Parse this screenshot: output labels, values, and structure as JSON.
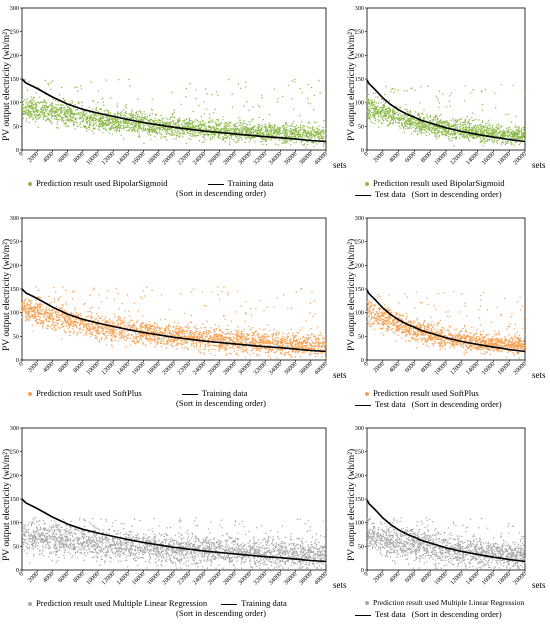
{
  "unit_y": "PV output electricity (wh/m²)",
  "x_unit_label": "sets",
  "chart_data": [
    {
      "type": "scatter",
      "activation": "BipolarSigmoid",
      "point_color": "#8db94a",
      "subset": "training",
      "ylabel": "PV output electricity (wh/m²)",
      "xlabel": "sets",
      "xlim": [
        0,
        40000
      ],
      "ylim": [
        0,
        300
      ],
      "xticks": [
        "0",
        "2000",
        "4000",
        "6000",
        "8000",
        "10000",
        "12000",
        "14000",
        "16000",
        "18000",
        "20000",
        "22000",
        "24000",
        "26000",
        "28000",
        "30000",
        "32000",
        "34000",
        "36000",
        "38000",
        "40000"
      ],
      "yticks": [
        "0",
        "50",
        "100",
        "150",
        "200",
        "250",
        "300"
      ],
      "series": [
        {
          "name": "Prediction result used BipolarSigmoid",
          "kind": "points",
          "center": [
            [
              0,
              88
            ],
            [
              4000,
              82
            ],
            [
              10000,
              62
            ],
            [
              20000,
              48
            ],
            [
              30000,
              38
            ],
            [
              40000,
              32
            ]
          ],
          "spread": [
            [
              0,
              22
            ],
            [
              10000,
              22
            ],
            [
              40000,
              18
            ]
          ],
          "ymax": 150
        },
        {
          "name": "Training data",
          "kind": "line",
          "x": [
            0,
            500,
            2000,
            4000,
            6000,
            8000,
            10000,
            12000,
            14000,
            16000,
            18000,
            20000,
            22000,
            24000,
            26000,
            28000,
            30000,
            32000,
            34000,
            36000,
            38000,
            40000
          ],
          "y": [
            150,
            142,
            130,
            112,
            97,
            86,
            78,
            71,
            64,
            58,
            53,
            48,
            44,
            40,
            37,
            34,
            31,
            28,
            26,
            23,
            20,
            18
          ]
        }
      ],
      "legend": {
        "points": "Prediction result used BipolarSigmoid",
        "line": "Training data",
        "note": "(Sort in descending order)"
      }
    },
    {
      "type": "scatter",
      "activation": "BipolarSigmoid",
      "point_color": "#8db94a",
      "subset": "test",
      "ylabel": "PV output electricity (wh/m²)",
      "xlabel": "sets",
      "xlim": [
        0,
        20000
      ],
      "ylim": [
        0,
        300
      ],
      "xticks": [
        "0",
        "2000",
        "4000",
        "6000",
        "8000",
        "10000",
        "12000",
        "14000",
        "16000",
        "18000",
        "20000"
      ],
      "yticks": [
        "0",
        "50",
        "100",
        "150",
        "200",
        "250",
        "300"
      ],
      "series": [
        {
          "name": "Prediction result used BipolarSigmoid",
          "kind": "points",
          "center": [
            [
              0,
              88
            ],
            [
              2000,
              80
            ],
            [
              5000,
              62
            ],
            [
              10000,
              45
            ],
            [
              15000,
              36
            ],
            [
              20000,
              30
            ]
          ],
          "spread": [
            [
              0,
              22
            ],
            [
              10000,
              20
            ],
            [
              20000,
              16
            ]
          ],
          "ymax": 140
        },
        {
          "name": "Test data",
          "kind": "line",
          "x": [
            0,
            250,
            1000,
            2000,
            3000,
            4000,
            5000,
            6000,
            7000,
            8000,
            9000,
            10000,
            11000,
            12000,
            13000,
            14000,
            15000,
            16000,
            17000,
            18000,
            19000,
            20000
          ],
          "y": [
            148,
            140,
            128,
            110,
            96,
            85,
            76,
            69,
            62,
            57,
            52,
            47,
            43,
            39,
            36,
            33,
            30,
            27,
            25,
            22,
            20,
            18
          ]
        }
      ],
      "legend": {
        "points": "Prediction result used BipolarSigmoid",
        "line": "Test data",
        "note": "(Sort in descending order)"
      }
    },
    {
      "type": "scatter",
      "activation": "SoftPlus",
      "point_color": "#f4a154",
      "subset": "training",
      "ylabel": "PV output electricity (wh/m²)",
      "xlabel": "sets",
      "xlim": [
        0,
        40000
      ],
      "ylim": [
        0,
        300
      ],
      "xticks": [
        "0",
        "2000",
        "4000",
        "6000",
        "8000",
        "10000",
        "12000",
        "14000",
        "16000",
        "18000",
        "20000",
        "22000",
        "24000",
        "26000",
        "28000",
        "30000",
        "32000",
        "34000",
        "36000",
        "38000",
        "40000"
      ],
      "yticks": [
        "0",
        "50",
        "100",
        "150",
        "200",
        "250",
        "300"
      ],
      "series": [
        {
          "name": "Prediction result used SoftPlus",
          "kind": "points",
          "center": [
            [
              0,
              108
            ],
            [
              4000,
              92
            ],
            [
              10000,
              68
            ],
            [
              20000,
              50
            ],
            [
              30000,
              38
            ],
            [
              40000,
              30
            ]
          ],
          "spread": [
            [
              0,
              26
            ],
            [
              10000,
              24
            ],
            [
              40000,
              20
            ]
          ],
          "ymax": 155
        },
        {
          "name": "Training data",
          "kind": "line",
          "x": [
            0,
            500,
            2000,
            4000,
            6000,
            8000,
            10000,
            12000,
            14000,
            16000,
            18000,
            20000,
            22000,
            24000,
            26000,
            28000,
            30000,
            32000,
            34000,
            36000,
            38000,
            40000
          ],
          "y": [
            150,
            142,
            130,
            112,
            97,
            86,
            78,
            71,
            64,
            58,
            53,
            48,
            44,
            40,
            37,
            34,
            31,
            28,
            26,
            23,
            20,
            18
          ]
        }
      ],
      "legend": {
        "points": "Prediction result used SoftPlus",
        "line": "Training data",
        "note": "(Sort in descending order)"
      }
    },
    {
      "type": "scatter",
      "activation": "SoftPlus",
      "point_color": "#f4a154",
      "subset": "test",
      "ylabel": "PV output electricity (wh/m²)",
      "xlabel": "sets",
      "xlim": [
        0,
        20000
      ],
      "ylim": [
        0,
        300
      ],
      "xticks": [
        "0",
        "2000",
        "4000",
        "6000",
        "8000",
        "10000",
        "12000",
        "14000",
        "16000",
        "18000",
        "20000"
      ],
      "yticks": [
        "0",
        "50",
        "100",
        "150",
        "200",
        "250",
        "300"
      ],
      "series": [
        {
          "name": "Prediction result used SoftPlus",
          "kind": "points",
          "center": [
            [
              0,
              100
            ],
            [
              2000,
              88
            ],
            [
              5000,
              66
            ],
            [
              10000,
              46
            ],
            [
              15000,
              36
            ],
            [
              20000,
              30
            ]
          ],
          "spread": [
            [
              0,
              24
            ],
            [
              10000,
              20
            ],
            [
              20000,
              16
            ]
          ],
          "ymax": 145
        },
        {
          "name": "Test data",
          "kind": "line",
          "x": [
            0,
            250,
            1000,
            2000,
            3000,
            4000,
            5000,
            6000,
            7000,
            8000,
            9000,
            10000,
            11000,
            12000,
            13000,
            14000,
            15000,
            16000,
            17000,
            18000,
            19000,
            20000
          ],
          "y": [
            148,
            140,
            128,
            110,
            96,
            85,
            76,
            69,
            62,
            57,
            52,
            47,
            43,
            39,
            36,
            33,
            30,
            27,
            25,
            22,
            20,
            18
          ]
        }
      ],
      "legend": {
        "points": "Prediction result used SoftPlus",
        "line": "Test data",
        "note": "(Sort in descending order)"
      }
    },
    {
      "type": "scatter",
      "activation": "Multiple Linear Regression",
      "point_color": "#a8a8a8",
      "subset": "training",
      "ylabel": "PV output electricity (wh/m²)",
      "xlabel": "sets",
      "xlim": [
        0,
        40000
      ],
      "ylim": [
        0,
        300
      ],
      "xticks": [
        "0",
        "2000",
        "4000",
        "6000",
        "8000",
        "10000",
        "12000",
        "14000",
        "16000",
        "18000",
        "20000",
        "22000",
        "24000",
        "26000",
        "28000",
        "30000",
        "32000",
        "34000",
        "36000",
        "38000",
        "40000"
      ],
      "yticks": [
        "0",
        "50",
        "100",
        "150",
        "200",
        "250",
        "300"
      ],
      "series": [
        {
          "name": "Prediction result used Multiple Linear Regression",
          "kind": "points",
          "center": [
            [
              0,
              72
            ],
            [
              6000,
              60
            ],
            [
              12000,
              52
            ],
            [
              20000,
              44
            ],
            [
              30000,
              36
            ],
            [
              40000,
              30
            ]
          ],
          "spread": [
            [
              0,
              30
            ],
            [
              10000,
              32
            ],
            [
              40000,
              26
            ]
          ],
          "ymax": 110
        },
        {
          "name": "Training data",
          "kind": "line",
          "x": [
            0,
            500,
            2000,
            4000,
            6000,
            8000,
            10000,
            12000,
            14000,
            16000,
            18000,
            20000,
            22000,
            24000,
            26000,
            28000,
            30000,
            32000,
            34000,
            36000,
            38000,
            40000
          ],
          "y": [
            150,
            142,
            130,
            112,
            97,
            86,
            78,
            71,
            64,
            58,
            53,
            48,
            44,
            40,
            37,
            34,
            31,
            28,
            26,
            23,
            20,
            18
          ]
        }
      ],
      "legend": {
        "points": "Prediction result used Multiple Linear Regression",
        "line": "Training data",
        "note": "(Sort in descending order)"
      }
    },
    {
      "type": "scatter",
      "activation": "Multiple Linear Regression",
      "point_color": "#a8a8a8",
      "subset": "test",
      "ylabel": "PV output electricity (wh/m²)",
      "xlabel": "sets",
      "xlim": [
        0,
        20000
      ],
      "ylim": [
        0,
        300
      ],
      "xticks": [
        "0",
        "2000",
        "4000",
        "6000",
        "8000",
        "10000",
        "12000",
        "14000",
        "16000",
        "18000",
        "20000"
      ],
      "yticks": [
        "0",
        "50",
        "100",
        "150",
        "200",
        "250",
        "300"
      ],
      "series": [
        {
          "name": "Prediction result used Multiple Linear Regression",
          "kind": "points",
          "center": [
            [
              0,
              72
            ],
            [
              3000,
              60
            ],
            [
              6000,
              52
            ],
            [
              10000,
              44
            ],
            [
              15000,
              36
            ],
            [
              20000,
              30
            ]
          ],
          "spread": [
            [
              0,
              30
            ],
            [
              10000,
              30
            ],
            [
              20000,
              24
            ]
          ],
          "ymax": 110
        },
        {
          "name": "Test data",
          "kind": "line",
          "x": [
            0,
            250,
            1000,
            2000,
            3000,
            4000,
            5000,
            6000,
            7000,
            8000,
            9000,
            10000,
            11000,
            12000,
            13000,
            14000,
            15000,
            16000,
            17000,
            18000,
            19000,
            20000
          ],
          "y": [
            148,
            140,
            128,
            110,
            96,
            85,
            76,
            69,
            62,
            57,
            52,
            47,
            43,
            39,
            36,
            33,
            30,
            27,
            25,
            22,
            20,
            18
          ]
        }
      ],
      "legend": {
        "points": "Prediction result used Multiple Linear Regression",
        "line": "Test data",
        "note": "(Sort in descending order)"
      }
    }
  ]
}
